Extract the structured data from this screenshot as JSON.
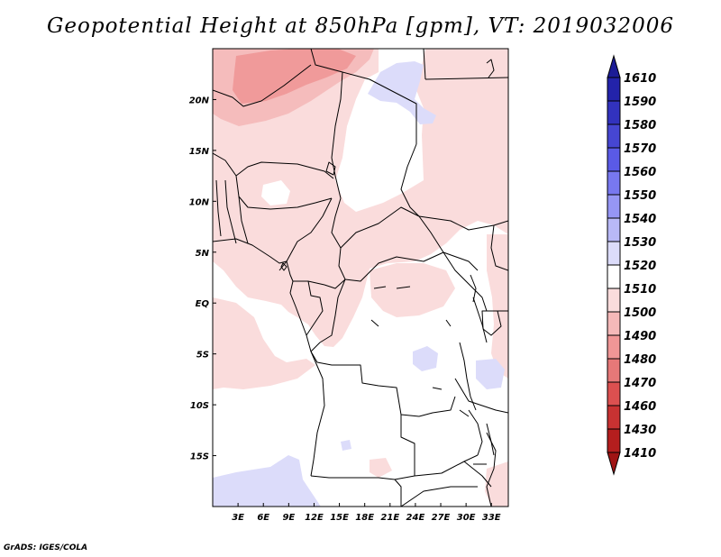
{
  "title": "Geopotential Height at 850hPa [gpm], VT: 2019032006",
  "credit": "GrADS: IGES/COLA",
  "map": {
    "lon_range": [
      0,
      35
    ],
    "lat_range": [
      -20,
      25
    ],
    "lat_ticks": [
      {
        "lat": 20,
        "label": "20N"
      },
      {
        "lat": 15,
        "label": "15N"
      },
      {
        "lat": 10,
        "label": "10N"
      },
      {
        "lat": 5,
        "label": "5N"
      },
      {
        "lat": 0,
        "label": "EQ"
      },
      {
        "lat": -5,
        "label": "5S"
      },
      {
        "lat": -10,
        "label": "10S"
      },
      {
        "lat": -15,
        "label": "15S"
      }
    ],
    "lon_ticks": [
      {
        "lon": 3,
        "label": "3E"
      },
      {
        "lon": 6,
        "label": "6E"
      },
      {
        "lon": 9,
        "label": "9E"
      },
      {
        "lon": 12,
        "label": "12E"
      },
      {
        "lon": 15,
        "label": "15E"
      },
      {
        "lon": 18,
        "label": "18E"
      },
      {
        "lon": 21,
        "label": "21E"
      },
      {
        "lon": 24,
        "label": "24E"
      },
      {
        "lon": 27,
        "label": "27E"
      },
      {
        "lon": 30,
        "label": "30E"
      },
      {
        "lon": 33,
        "label": "33E"
      }
    ]
  },
  "colorbar": {
    "levels": [
      "1610",
      "1590",
      "1580",
      "1570",
      "1560",
      "1550",
      "1540",
      "1530",
      "1520",
      "1510",
      "1500",
      "1490",
      "1480",
      "1470",
      "1460",
      "1430",
      "1410"
    ],
    "colors": [
      "#1c1c96",
      "#2323aa",
      "#3232be",
      "#4646d2",
      "#5a5ae6",
      "#7878f0",
      "#9696f5",
      "#b9b9f7",
      "#dcdcfa",
      "#ffffff",
      "#fadcdc",
      "#f5b9b9",
      "#f09696",
      "#e67878",
      "#dc5050",
      "#c83232",
      "#b41e1e",
      "#a01414"
    ]
  },
  "colors": {
    "low_strong": "#f09a9a",
    "low_medium": "#f5bcbc",
    "low_light": "#fadcdc",
    "high_light": "#dcdcfa",
    "border": "#000000"
  }
}
